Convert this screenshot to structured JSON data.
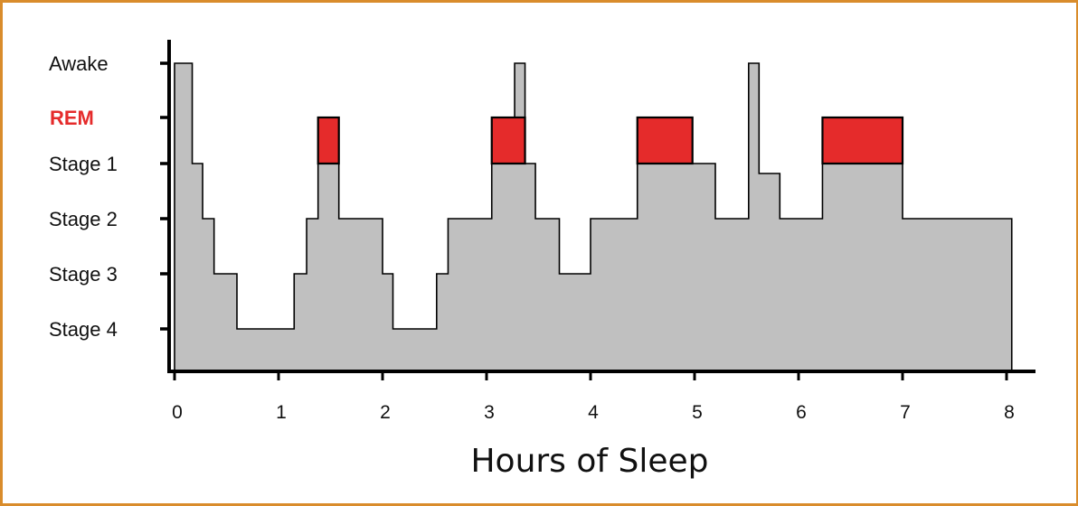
{
  "chart_data": {
    "type": "area",
    "title": "",
    "xlabel": "Hours of Sleep",
    "ylabel": "",
    "xlim": [
      0,
      8
    ],
    "x_ticks": [
      "0",
      "1",
      "2",
      "3",
      "4",
      "5",
      "6",
      "7",
      "8"
    ],
    "y_categories": [
      "Awake",
      "REM",
      "Stage 1",
      "Stage 2",
      "Stage 3",
      "Stage 4"
    ],
    "grid": false,
    "colors": {
      "fill": "#c0c0c0",
      "rem": "#e52b2b",
      "rem_label": "#e52b2b",
      "axis": "#000000",
      "frame": "#d98c2b"
    },
    "hypnogram": [
      {
        "x": 0.0,
        "stage": "Awake"
      },
      {
        "x": 0.17,
        "stage": "Stage 1"
      },
      {
        "x": 0.27,
        "stage": "Stage 2"
      },
      {
        "x": 0.38,
        "stage": "Stage 3"
      },
      {
        "x": 0.6,
        "stage": "Stage 4"
      },
      {
        "x": 1.15,
        "stage": "Stage 3"
      },
      {
        "x": 1.27,
        "stage": "Stage 2"
      },
      {
        "x": 1.38,
        "stage": "Stage 1"
      },
      {
        "x": 1.58,
        "stage": "Stage 2"
      },
      {
        "x": 2.0,
        "stage": "Stage 3"
      },
      {
        "x": 2.1,
        "stage": "Stage 4"
      },
      {
        "x": 2.52,
        "stage": "Stage 3"
      },
      {
        "x": 2.63,
        "stage": "Stage 2"
      },
      {
        "x": 3.05,
        "stage": "Stage 1"
      },
      {
        "x": 3.27,
        "stage": "Awake"
      },
      {
        "x": 3.37,
        "stage": "Stage 1"
      },
      {
        "x": 3.47,
        "stage": "Stage 2"
      },
      {
        "x": 3.7,
        "stage": "Stage 3"
      },
      {
        "x": 4.0,
        "stage": "Stage 2"
      },
      {
        "x": 4.45,
        "stage": "Stage 1"
      },
      {
        "x": 5.2,
        "stage": "Stage 2"
      },
      {
        "x": 5.52,
        "stage": "Awake"
      },
      {
        "x": 5.62,
        "stage": "Stage 1.2"
      },
      {
        "x": 5.82,
        "stage": "Stage 2"
      },
      {
        "x": 6.23,
        "stage": "Stage 1"
      },
      {
        "x": 7.0,
        "stage": "Stage 2"
      },
      {
        "x": 8.05,
        "stage": "end"
      }
    ],
    "rem_periods": [
      {
        "start": 1.38,
        "end": 1.58
      },
      {
        "start": 3.05,
        "end": 3.37
      },
      {
        "start": 4.45,
        "end": 4.98
      },
      {
        "start": 6.23,
        "end": 7.0
      }
    ]
  }
}
